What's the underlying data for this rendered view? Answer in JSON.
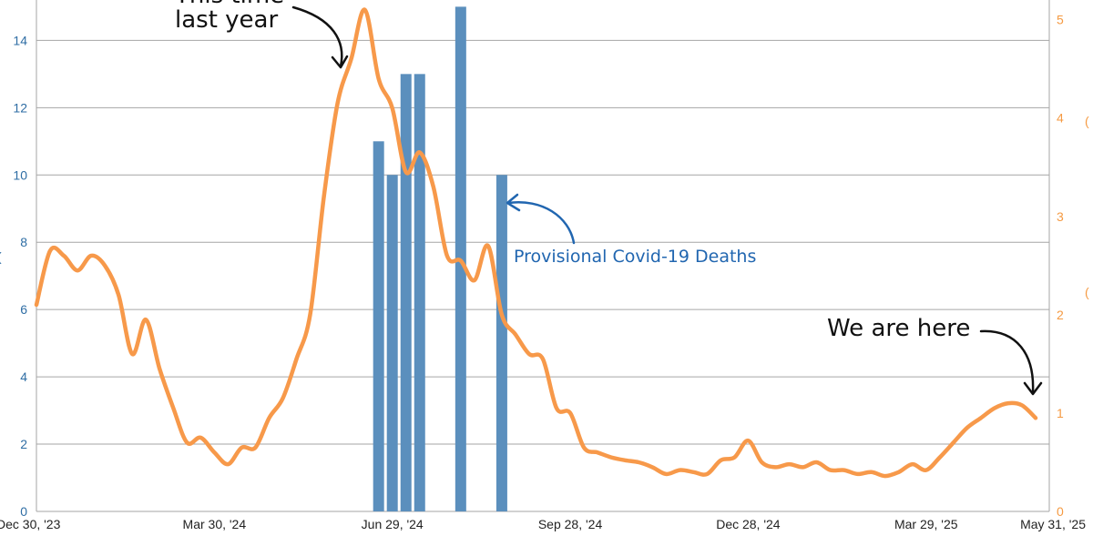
{
  "chart_data": {
    "type": "bar+line",
    "x_ticks": [
      "Dec 30, '23",
      "Mar 30, '24",
      "Jun 29, '24",
      "Sep 28, '24",
      "Dec 28, '24",
      "Mar 29, '25",
      "May 31, '25"
    ],
    "y_left": {
      "ticks": [
        "0",
        "2",
        "4",
        "6",
        "8",
        "10",
        "12",
        "14"
      ],
      "range": [
        0,
        15.2
      ],
      "color": "#2e6da4"
    },
    "y_right": {
      "ticks": [
        "0",
        "1",
        "2",
        "3",
        "4",
        "5"
      ],
      "range": [
        0,
        5.2
      ],
      "color": "#f59a42"
    },
    "grid": true,
    "series": [
      {
        "name": "Provisional Covid-19 Deaths",
        "type": "bar",
        "axis": "left",
        "color": "#5b8fbd",
        "points": [
          {
            "date": "2024-06-22",
            "value": 11
          },
          {
            "date": "2024-06-29",
            "value": 10
          },
          {
            "date": "2024-07-06",
            "value": 13
          },
          {
            "date": "2024-07-13",
            "value": 13
          },
          {
            "date": "2024-08-03",
            "value": 15
          },
          {
            "date": "2024-08-24",
            "value": 10
          }
        ]
      },
      {
        "type": "line",
        "axis": "right",
        "color": "#f7994a",
        "points": [
          [
            "2023-12-30",
            2.1
          ],
          [
            "2024-01-06",
            2.65
          ],
          [
            "2024-01-13",
            2.6
          ],
          [
            "2024-01-20",
            2.45
          ],
          [
            "2024-01-27",
            2.6
          ],
          [
            "2024-02-03",
            2.5
          ],
          [
            "2024-02-10",
            2.2
          ],
          [
            "2024-02-17",
            1.6
          ],
          [
            "2024-02-24",
            1.95
          ],
          [
            "2024-03-02",
            1.45
          ],
          [
            "2024-03-09",
            1.05
          ],
          [
            "2024-03-16",
            0.7
          ],
          [
            "2024-03-23",
            0.75
          ],
          [
            "2024-03-30",
            0.6
          ],
          [
            "2024-04-06",
            0.48
          ],
          [
            "2024-04-13",
            0.65
          ],
          [
            "2024-04-20",
            0.65
          ],
          [
            "2024-04-27",
            0.95
          ],
          [
            "2024-05-04",
            1.15
          ],
          [
            "2024-05-11",
            1.55
          ],
          [
            "2024-05-18",
            2.0
          ],
          [
            "2024-05-25",
            3.2
          ],
          [
            "2024-06-01",
            4.15
          ],
          [
            "2024-06-08",
            4.6
          ],
          [
            "2024-06-15",
            5.1
          ],
          [
            "2024-06-22",
            4.4
          ],
          [
            "2024-06-29",
            4.1
          ],
          [
            "2024-07-06",
            3.45
          ],
          [
            "2024-07-13",
            3.65
          ],
          [
            "2024-07-20",
            3.3
          ],
          [
            "2024-07-27",
            2.6
          ],
          [
            "2024-08-03",
            2.55
          ],
          [
            "2024-08-10",
            2.35
          ],
          [
            "2024-08-17",
            2.7
          ],
          [
            "2024-08-24",
            2.0
          ],
          [
            "2024-08-31",
            1.8
          ],
          [
            "2024-09-07",
            1.6
          ],
          [
            "2024-09-14",
            1.55
          ],
          [
            "2024-09-21",
            1.05
          ],
          [
            "2024-09-28",
            1.0
          ],
          [
            "2024-10-05",
            0.65
          ],
          [
            "2024-10-12",
            0.6
          ],
          [
            "2024-10-19",
            0.55
          ],
          [
            "2024-10-26",
            0.52
          ],
          [
            "2024-11-02",
            0.5
          ],
          [
            "2024-11-09",
            0.45
          ],
          [
            "2024-11-16",
            0.38
          ],
          [
            "2024-11-23",
            0.42
          ],
          [
            "2024-11-30",
            0.4
          ],
          [
            "2024-12-07",
            0.38
          ],
          [
            "2024-12-14",
            0.52
          ],
          [
            "2024-12-21",
            0.55
          ],
          [
            "2024-12-28",
            0.72
          ],
          [
            "2025-01-04",
            0.5
          ],
          [
            "2025-01-11",
            0.45
          ],
          [
            "2025-01-18",
            0.48
          ],
          [
            "2025-01-25",
            0.45
          ],
          [
            "2025-02-01",
            0.5
          ],
          [
            "2025-02-08",
            0.42
          ],
          [
            "2025-02-15",
            0.42
          ],
          [
            "2025-02-22",
            0.38
          ],
          [
            "2025-03-01",
            0.4
          ],
          [
            "2025-03-08",
            0.36
          ],
          [
            "2025-03-15",
            0.4
          ],
          [
            "2025-03-22",
            0.48
          ],
          [
            "2025-03-29",
            0.42
          ],
          [
            "2025-04-05",
            0.55
          ],
          [
            "2025-04-12",
            0.7
          ],
          [
            "2025-04-19",
            0.85
          ],
          [
            "2025-04-26",
            0.95
          ],
          [
            "2025-05-03",
            1.05
          ],
          [
            "2025-05-10",
            1.1
          ],
          [
            "2025-05-17",
            1.08
          ],
          [
            "2025-05-24",
            0.95
          ]
        ]
      }
    ],
    "annotations": [
      {
        "text_lines": [
          "This time",
          "last year"
        ],
        "color": "#111111"
      },
      {
        "text_lines": [
          "We are here"
        ],
        "color": "#111111"
      },
      {
        "text_lines": [
          "Provisional Covid-19 Deaths"
        ],
        "color": "#2166b0"
      }
    ],
    "right_axis_partial_labels": [
      "(",
      "("
    ]
  }
}
